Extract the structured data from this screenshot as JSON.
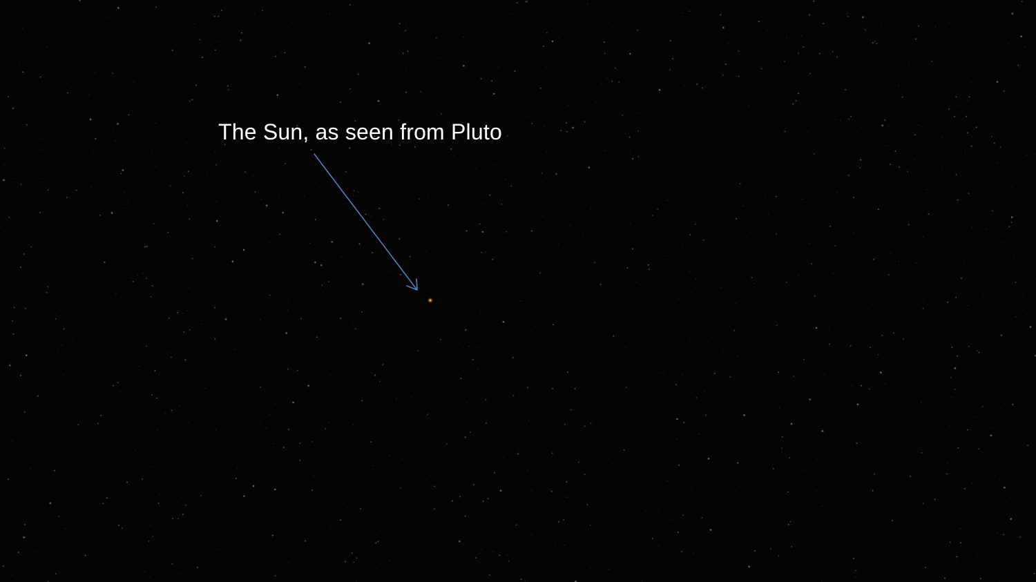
{
  "caption": "The Sun, as seen from Pluto",
  "colors": {
    "background": "#040404",
    "caption_text": "#ffffff",
    "arrow": "#4f81bd",
    "sun": "#e8a040",
    "stars": "#ffffff"
  }
}
